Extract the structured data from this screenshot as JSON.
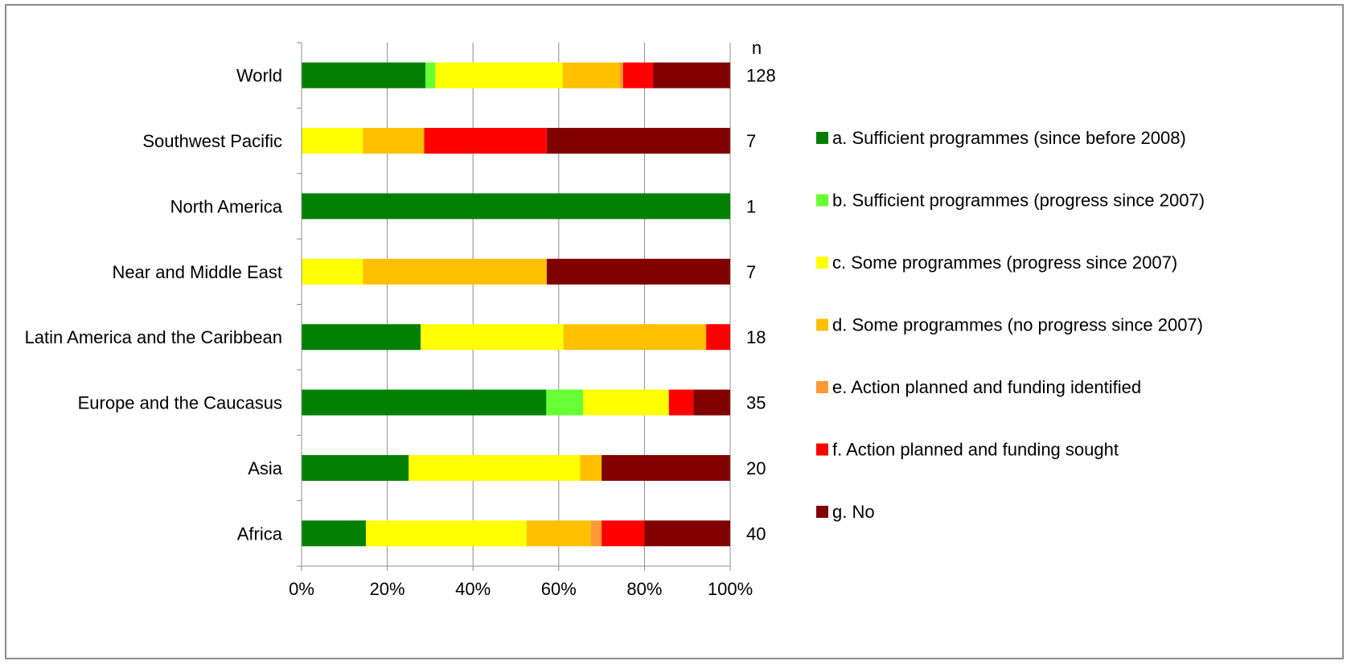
{
  "chart_data": {
    "type": "bar",
    "orientation": "horizontal",
    "stacked": "percent",
    "categories": [
      "World",
      "Southwest Pacific",
      "North America",
      "Near and Middle East",
      "Latin America and the Caribbean",
      "Europe and the Caucasus",
      "Asia",
      "Africa"
    ],
    "n_header": "n",
    "n_values": [
      "128",
      "7",
      "1",
      "7",
      "18",
      "35",
      "20",
      "40"
    ],
    "series": [
      {
        "name": "a. Sufficient programmes (since before 2008)",
        "color": "#008000",
        "values": [
          28.9,
          0,
          100,
          0,
          27.8,
          57.1,
          25,
          15
        ]
      },
      {
        "name": "b. Sufficient programmes (progress since 2007)",
        "color": "#66FF33",
        "values": [
          2.3,
          0,
          0,
          0,
          0,
          8.6,
          0,
          0
        ]
      },
      {
        "name": "c. Some programmes (progress since 2007)",
        "color": "#FFFF00",
        "values": [
          29.7,
          14.3,
          0,
          14.3,
          33.3,
          20,
          40,
          37.5
        ]
      },
      {
        "name": "d. Some programmes (no progress since 2007)",
        "color": "#FFC000",
        "values": [
          13.3,
          14.3,
          0,
          42.9,
          33.3,
          0,
          5,
          15
        ]
      },
      {
        "name": "e. Action planned and funding identified",
        "color": "#FF9933",
        "values": [
          0.8,
          0,
          0,
          0,
          0,
          0,
          0,
          2.5
        ]
      },
      {
        "name": "f. Action planned and funding sought",
        "color": "#FF0000",
        "values": [
          7,
          28.6,
          0,
          0,
          5.6,
          5.7,
          0,
          10
        ]
      },
      {
        "name": "g. No",
        "color": "#800000",
        "values": [
          18,
          42.8,
          0,
          42.8,
          0,
          8.6,
          30,
          20
        ]
      }
    ],
    "x_ticks": [
      "0%",
      "20%",
      "40%",
      "60%",
      "80%",
      "100%"
    ],
    "xlim": [
      0,
      100
    ],
    "grid": "vertical",
    "legend_position": "right"
  }
}
